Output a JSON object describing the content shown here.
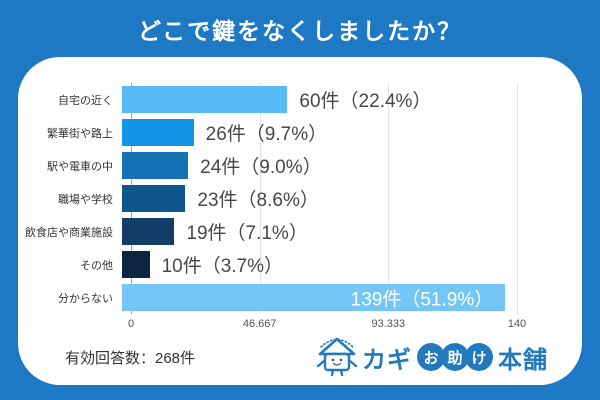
{
  "page": {
    "title": "どこで鍵をなくしましたか？"
  },
  "chart_data": {
    "type": "bar",
    "orientation": "horizontal",
    "title": "どこで鍵をなくしましたか？",
    "xlabel": "",
    "ylabel": "",
    "xlim": [
      0,
      140
    ],
    "xticks": [
      "0",
      "46.667",
      "93.333",
      "140"
    ],
    "grid": "vertical",
    "total_note": "有効回答数：268件",
    "bars": [
      {
        "category": "自宅の近く",
        "value": 60,
        "label": "60件（22.4%）",
        "color": "#58BBF7",
        "label_inside": false
      },
      {
        "category": "繁華街や路上",
        "value": 26,
        "label": "26件（9.7%）",
        "color": "#1494E9",
        "label_inside": false
      },
      {
        "category": "駅や電車の中",
        "value": 24,
        "label": "24件（9.0%）",
        "color": "#1472B5",
        "label_inside": false
      },
      {
        "category": "職場や学校",
        "value": 23,
        "label": "23件（8.6%）",
        "color": "#0E568C",
        "label_inside": false
      },
      {
        "category": "飲食店や商業施設",
        "value": 19,
        "label": "19件（7.1%）",
        "color": "#143E67",
        "label_inside": false
      },
      {
        "category": "その他",
        "value": 10,
        "label": "10件（3.7%）",
        "color": "#0D2440",
        "label_inside": false
      },
      {
        "category": "分からない",
        "value": 139,
        "label": "139件（51.9%）",
        "color": "#74C6F7",
        "label_inside": true
      }
    ]
  },
  "footer": {
    "note": "有効回答数：268件",
    "logo": {
      "kagi": "カギ",
      "otasuke_chars": [
        "お",
        "助",
        "け"
      ],
      "honpo": "本舗"
    }
  },
  "colors": {
    "background": "#1D79C4",
    "panel": "#FFFFFF",
    "title_text": "#FFFFFF",
    "value_text": "#474747",
    "inside_value_text": "#FFFFFF",
    "category_text": "#333333",
    "tick_text": "#555555",
    "gridline": "#E3E3E3",
    "axis_line": "#A8A8A8",
    "logo_blue": "#2379BE"
  }
}
